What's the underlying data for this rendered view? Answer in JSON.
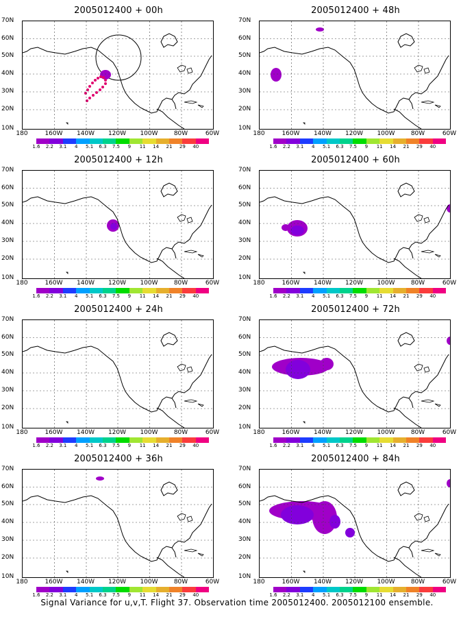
{
  "panels": [
    {
      "title": "2005012400 + 00h"
    },
    {
      "title": "2005012400 + 12h"
    },
    {
      "title": "2005012400 + 24h"
    },
    {
      "title": "2005012400 + 36h"
    },
    {
      "title": "2005012400 + 48h"
    },
    {
      "title": "2005012400 + 60h"
    },
    {
      "title": "2005012400 + 72h"
    },
    {
      "title": "2005012400 + 84h"
    }
  ],
  "y_labels": [
    "70N",
    "60N",
    "50N",
    "40N",
    "30N",
    "20N",
    "10N"
  ],
  "x_labels": [
    "180",
    "160W",
    "140W",
    "120W",
    "100W",
    "80W",
    "60W"
  ],
  "colorbar": {
    "labels": [
      "1.6",
      "2.2",
      "3.1",
      "4",
      "5.1",
      "6.3",
      "7.5",
      "9",
      "11",
      "14",
      "21",
      "29",
      "40"
    ],
    "colors": [
      "#a000c8",
      "#8200dc",
      "#1e3cff",
      "#00a0ff",
      "#00c8c8",
      "#00d28c",
      "#00dc00",
      "#a0e632",
      "#e6dc32",
      "#e6af2d",
      "#f08228",
      "#fa3c3c",
      "#f00082"
    ]
  },
  "footer": "Signal Variance for u,v,T. Flight 37. Observation time 2005012400. 2005012100 ensemble."
}
